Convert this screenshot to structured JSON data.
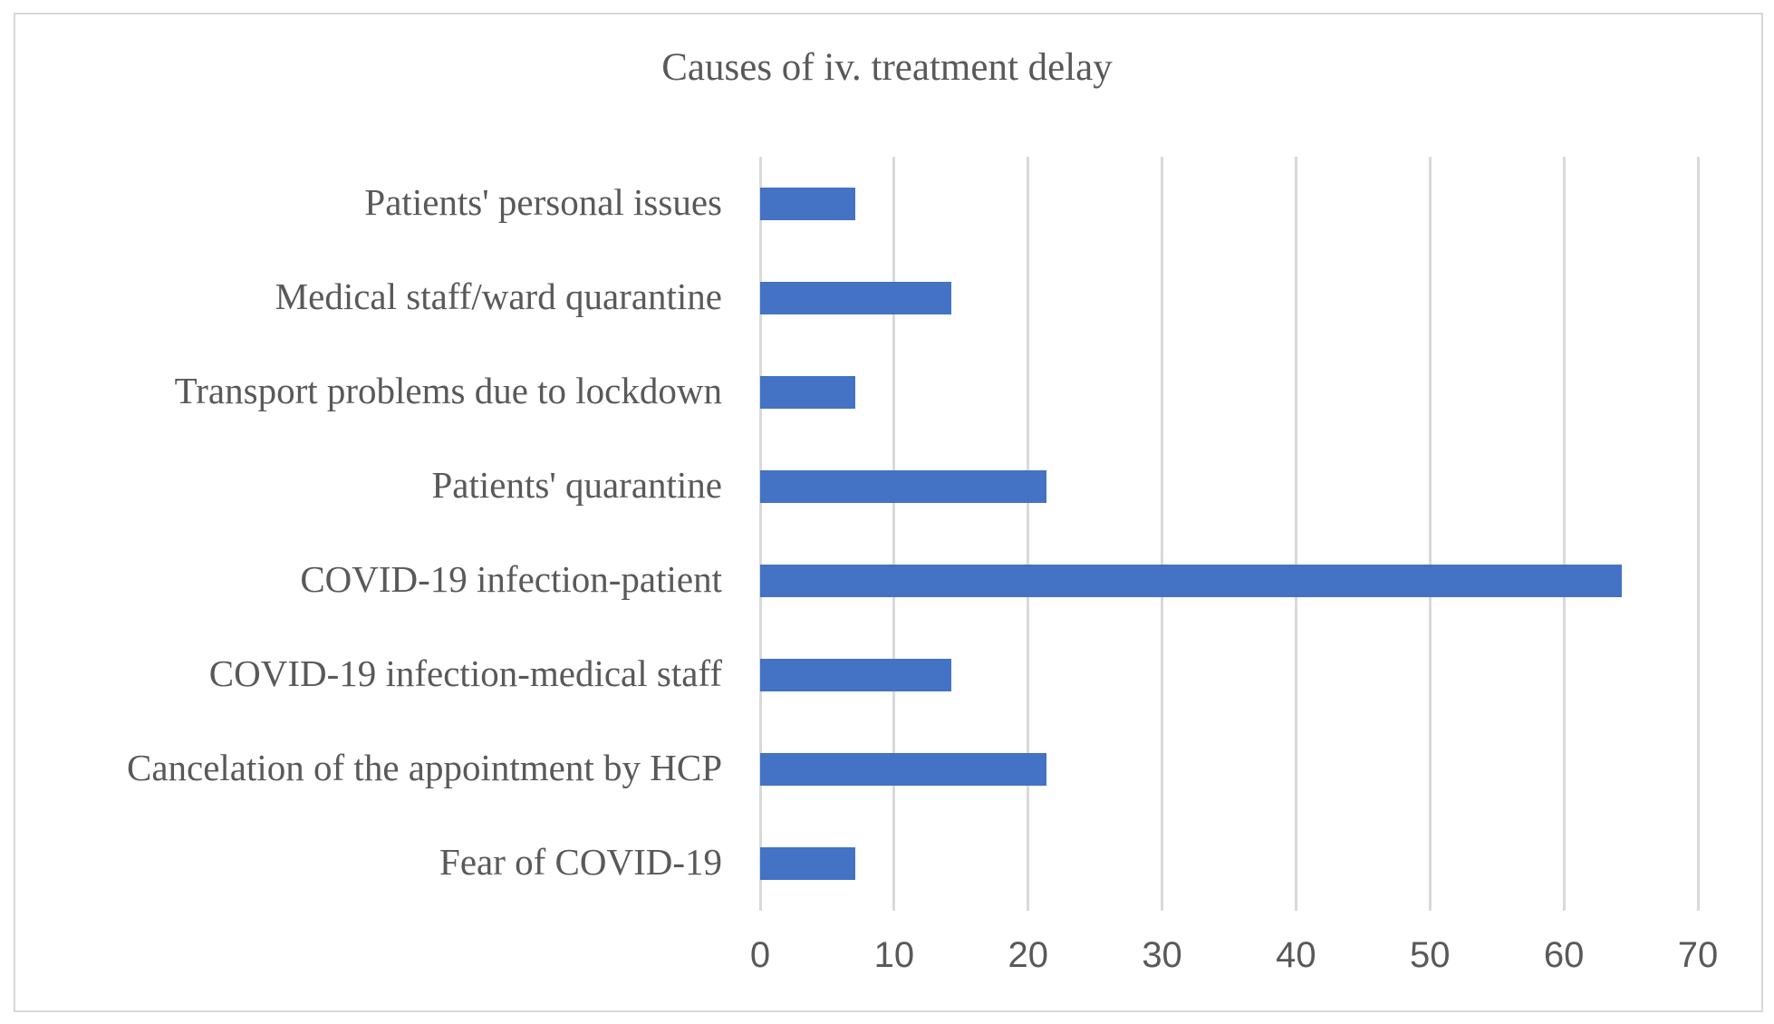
{
  "chart_data": {
    "type": "bar",
    "orientation": "horizontal",
    "title": "Causes of iv. treatment delay",
    "categories": [
      "Patients' personal issues",
      "Medical staff/ward quarantine",
      "Transport problems due to lockdown",
      "Patients' quarantine",
      "COVID-19 infection-patient",
      "COVID-19 infection-medical staff",
      "Cancelation of the appointment by HCP",
      "Fear of COVID-19"
    ],
    "values": [
      7.1,
      14.3,
      7.1,
      21.4,
      64.3,
      14.3,
      21.4,
      7.1
    ],
    "xlabel": "",
    "ylabel": "",
    "xlim": [
      0,
      70
    ],
    "xticks": [
      0,
      10,
      20,
      30,
      40,
      50,
      60,
      70
    ],
    "grid": "vertical-only",
    "legend": "none",
    "colors": {
      "bar": "#4472c4",
      "gridline": "#d9d9d9",
      "text": "#595959",
      "frame_border": "#d7d7d7",
      "background": "#ffffff"
    }
  }
}
